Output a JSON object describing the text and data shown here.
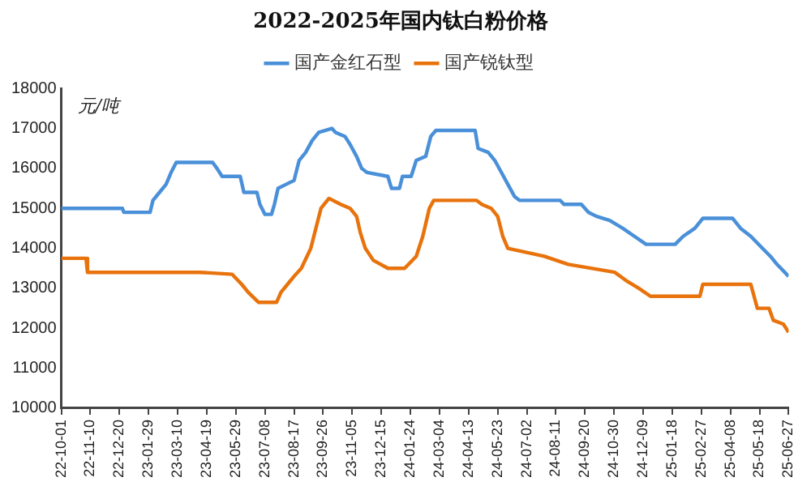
{
  "chart_data": {
    "type": "line",
    "title": "2022-2025年国内钛白粉价格",
    "ylabel": "元/吨",
    "legend": "top",
    "marker": "none",
    "line_style": "solid",
    "grid": false,
    "xlim": [
      "2022-10-01",
      "2025-06-27"
    ],
    "xticks": [
      {
        "value": "2022-10-01",
        "label": "22-10-01"
      },
      {
        "value": "2022-11-10",
        "label": "22-11-10"
      },
      {
        "value": "2022-12-20",
        "label": "22-12-20"
      },
      {
        "value": "2023-01-29",
        "label": "23-01-29"
      },
      {
        "value": "2023-03-10",
        "label": "23-03-10"
      },
      {
        "value": "2023-04-19",
        "label": "23-04-19"
      },
      {
        "value": "2023-05-29",
        "label": "23-05-29"
      },
      {
        "value": "2023-07-08",
        "label": "23-07-08"
      },
      {
        "value": "2023-08-17",
        "label": "23-08-17"
      },
      {
        "value": "2023-09-26",
        "label": "23-09-26"
      },
      {
        "value": "2023-11-05",
        "label": "23-11-05"
      },
      {
        "value": "2023-12-15",
        "label": "23-12-15"
      },
      {
        "value": "2024-01-24",
        "label": "24-01-24"
      },
      {
        "value": "2024-03-04",
        "label": "24-03-04"
      },
      {
        "value": "2024-04-13",
        "label": "24-04-13"
      },
      {
        "value": "2024-05-23",
        "label": "24-05-23"
      },
      {
        "value": "2024-07-02",
        "label": "24-07-02"
      },
      {
        "value": "2024-08-11",
        "label": "24-08-11"
      },
      {
        "value": "2024-09-20",
        "label": "24-09-20"
      },
      {
        "value": "2024-10-30",
        "label": "24-10-30"
      },
      {
        "value": "2024-12-09",
        "label": "24-12-09"
      },
      {
        "value": "2025-01-18",
        "label": "25-01-18"
      },
      {
        "value": "2025-02-27",
        "label": "25-02-27"
      },
      {
        "value": "2025-04-08",
        "label": "25-04-08"
      },
      {
        "value": "2025-05-18",
        "label": "25-05-18"
      },
      {
        "value": "2025-06-27",
        "label": "25-06-27"
      }
    ],
    "ylim": [
      10000,
      18000
    ],
    "yticks": [
      10000,
      11000,
      12000,
      13000,
      14000,
      15000,
      16000,
      17000,
      18000
    ],
    "series": [
      {
        "name": "国产金红石型",
        "color": "#4a90d9",
        "x": [
          "2022-10-01",
          "2022-12-24",
          "2022-12-26",
          "2023-01-31",
          "2023-02-04",
          "2023-02-13",
          "2023-02-22",
          "2023-03-01",
          "2023-03-08",
          "2023-04-27",
          "2023-05-03",
          "2023-05-10",
          "2023-06-04",
          "2023-06-09",
          "2023-06-27",
          "2023-07-01",
          "2023-07-08",
          "2023-07-17",
          "2023-07-21",
          "2023-07-26",
          "2023-08-06",
          "2023-08-17",
          "2023-08-24",
          "2023-09-02",
          "2023-09-11",
          "2023-09-20",
          "2023-10-08",
          "2023-10-13",
          "2023-10-26",
          "2023-11-02",
          "2023-11-11",
          "2023-11-18",
          "2023-11-25",
          "2023-12-24",
          "2023-12-29",
          "2024-01-09",
          "2024-01-13",
          "2024-01-25",
          "2024-02-01",
          "2024-02-14",
          "2024-02-21",
          "2024-02-28",
          "2024-04-22",
          "2024-04-26",
          "2024-05-10",
          "2024-05-19",
          "2024-05-28",
          "2024-06-06",
          "2024-06-15",
          "2024-06-22",
          "2024-08-17",
          "2024-08-22",
          "2024-09-15",
          "2024-09-25",
          "2024-10-06",
          "2024-10-24",
          "2024-11-11",
          "2024-11-27",
          "2024-12-13",
          "2025-01-22",
          "2025-02-02",
          "2025-02-18",
          "2025-03-01",
          "2025-04-11",
          "2025-04-22",
          "2025-05-06",
          "2025-05-22",
          "2025-06-02",
          "2025-06-11",
          "2025-06-27"
        ],
        "values": [
          15000,
          15000,
          14900,
          14900,
          15200,
          15400,
          15600,
          15900,
          16150,
          16150,
          16000,
          15800,
          15800,
          15400,
          15400,
          15100,
          14850,
          14850,
          15100,
          15500,
          15600,
          15700,
          16200,
          16400,
          16700,
          16900,
          17000,
          16900,
          16800,
          16600,
          16300,
          16000,
          15900,
          15800,
          15500,
          15500,
          15800,
          15800,
          16200,
          16300,
          16800,
          16950,
          16950,
          16500,
          16400,
          16200,
          15900,
          15600,
          15300,
          15200,
          15200,
          15100,
          15100,
          14900,
          14800,
          14700,
          14500,
          14300,
          14100,
          14100,
          14300,
          14500,
          14750,
          14750,
          14500,
          14300,
          14000,
          13800,
          13600,
          13300
        ]
      },
      {
        "name": "国产锐钛型",
        "color": "#e8730c",
        "x": [
          "2022-10-01",
          "2022-11-04",
          "2022-11-06",
          "2023-01-31",
          "2023-04-09",
          "2023-05-24",
          "2023-06-06",
          "2023-06-15",
          "2023-06-29",
          "2023-07-24",
          "2023-07-30",
          "2023-08-08",
          "2023-08-17",
          "2023-08-27",
          "2023-09-09",
          "2023-09-16",
          "2023-09-23",
          "2023-10-04",
          "2023-10-20",
          "2023-11-02",
          "2023-11-11",
          "2023-11-16",
          "2023-11-23",
          "2023-12-04",
          "2023-12-24",
          "2024-01-16",
          "2024-02-01",
          "2024-02-10",
          "2024-02-19",
          "2024-02-25",
          "2024-04-24",
          "2024-05-01",
          "2024-05-14",
          "2024-05-23",
          "2024-05-30",
          "2024-06-06",
          "2024-07-26",
          "2024-08-28",
          "2024-10-31",
          "2024-11-15",
          "2024-12-03",
          "2024-12-19",
          "2025-02-25",
          "2025-03-01",
          "2025-05-06",
          "2025-05-15",
          "2025-05-31",
          "2025-06-06",
          "2025-06-20",
          "2025-06-27"
        ],
        "values": [
          13750,
          13750,
          13400,
          13400,
          13400,
          13350,
          13100,
          12900,
          12650,
          12650,
          12900,
          13100,
          13300,
          13500,
          14000,
          14500,
          15000,
          15250,
          15100,
          15000,
          14800,
          14400,
          14000,
          13700,
          13500,
          13500,
          13800,
          14300,
          15000,
          15200,
          15200,
          15100,
          15000,
          14800,
          14300,
          14000,
          13800,
          13600,
          13400,
          13200,
          13000,
          12800,
          12800,
          13100,
          13100,
          12500,
          12500,
          12200,
          12100,
          11900
        ]
      }
    ]
  }
}
